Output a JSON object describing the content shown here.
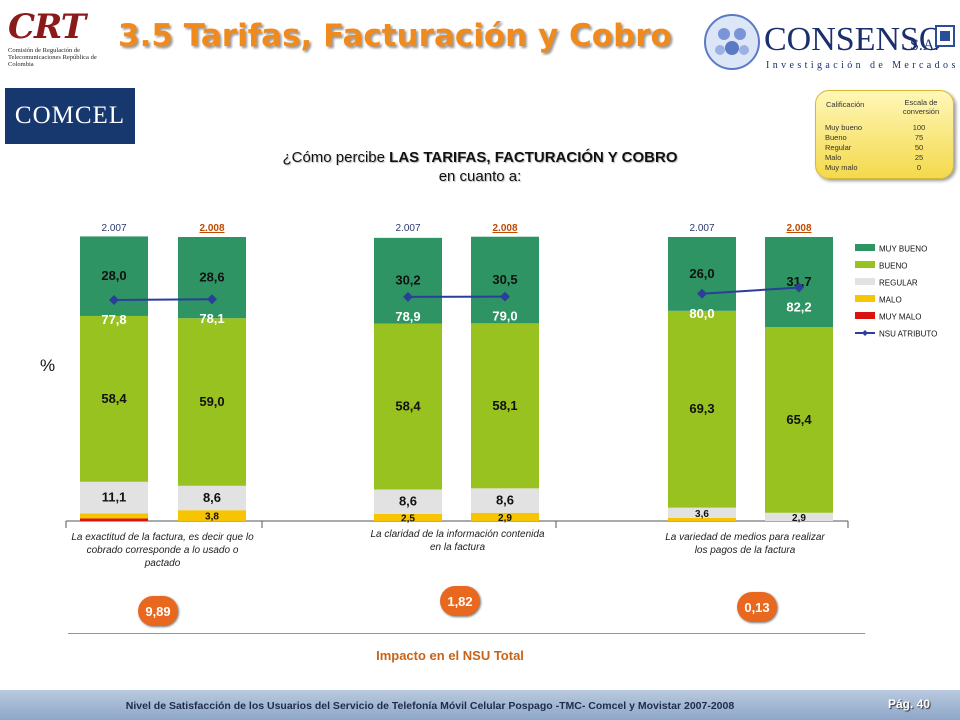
{
  "header": {
    "title": "3.5 Tarifas, Facturación y Cobro",
    "crt_logo": {
      "mark": "CRT",
      "text": "Comisión de Regulación de Telecomunicaciones República de Colombia"
    },
    "consenso_logo": {
      "name": "CONSENSO",
      "suffix": "S.A.",
      "tagline": "Investigación de Mercados"
    },
    "comcel_logo": "COMCEL"
  },
  "scale": {
    "col_rating": "Calificación",
    "col_scale": "Escala de conversión",
    "rows": [
      {
        "label": "Muy bueno",
        "value": "100"
      },
      {
        "label": "Bueno",
        "value": "75"
      },
      {
        "label": "Regular",
        "value": "50"
      },
      {
        "label": "Malo",
        "value": "25"
      },
      {
        "label": "Muy malo",
        "value": "0"
      }
    ]
  },
  "question": {
    "prefix": "¿Cómo percibe ",
    "bold": "LAS TARIFAS, FACTURACIÓN Y COBRO",
    "line2": "en cuanto a:"
  },
  "y_unit": "%",
  "impact": {
    "title": "Impacto en el NSU Total",
    "values": [
      "9,89",
      "1,82",
      "0,13"
    ]
  },
  "footer": {
    "text": "Nivel de Satisfacción de los Usuarios del Servicio de Telefonía Móvil Celular Pospago -TMC- Comcel y Movistar 2007-2008",
    "page": "Pág. 40"
  },
  "chart_data": {
    "type": "bar",
    "stacked": true,
    "ylim": [
      0,
      100
    ],
    "colors": {
      "MUY BUENO": "#2E9463",
      "BUENO": "#98C21F",
      "REGULAR": "#E2E2E2",
      "MALO": "#F6C400",
      "MUY MALO": "#D8140F",
      "NSU ATRIBUTO": "#2B3F9A"
    },
    "legend": [
      "MUY BUENO",
      "BUENO",
      "REGULAR",
      "MALO",
      "MUY MALO",
      "NSU ATRIBUTO"
    ],
    "legend_position": "right",
    "groups": [
      {
        "label": "La exactitud de la factura, es decir que lo cobrado corresponde a lo usado o pactado",
        "bars": [
          {
            "year": "2.007",
            "muy_malo": 0.9,
            "malo": 1.8,
            "regular": 11.1,
            "bueno": 58.4,
            "muy_bueno": 28.0,
            "nsu": 77.8,
            "labels": {
              "malo": "",
              "regular": "11,1",
              "bueno": "58,4",
              "muy_bueno": "28,0",
              "nsu": "77,8"
            }
          },
          {
            "year": "2.008",
            "muy_malo": 0.0,
            "malo": 3.8,
            "regular": 8.6,
            "bueno": 59.0,
            "muy_bueno": 28.6,
            "nsu": 78.1,
            "labels": {
              "malo": "3,8",
              "regular": "8,6",
              "bueno": "59,0",
              "muy_bueno": "28,6",
              "nsu": "78,1"
            }
          }
        ]
      },
      {
        "label": "La claridad de la información contenida en la factura",
        "bars": [
          {
            "year": "2.007",
            "muy_malo": 0.0,
            "malo": 2.5,
            "regular": 8.6,
            "bueno": 58.4,
            "muy_bueno": 30.2,
            "nsu": 78.9,
            "labels": {
              "malo": "2,5",
              "regular": "8,6",
              "bueno": "58,4",
              "muy_bueno": "30,2",
              "nsu": "78,9"
            }
          },
          {
            "year": "2.008",
            "muy_malo": 0.0,
            "malo": 2.9,
            "regular": 8.6,
            "bueno": 58.1,
            "muy_bueno": 30.5,
            "nsu": 79.0,
            "labels": {
              "malo": "2,9",
              "regular": "8,6",
              "bueno": "58,1",
              "muy_bueno": "30,5",
              "nsu": "79,0"
            }
          }
        ]
      },
      {
        "label": "La variedad de medios para realizar los pagos de la factura",
        "bars": [
          {
            "year": "2.007",
            "muy_malo": 0.0,
            "malo": 1.1,
            "regular": 3.6,
            "bueno": 69.3,
            "muy_bueno": 26.0,
            "nsu": 80.0,
            "labels": {
              "malo": "",
              "regular": "3,6",
              "bueno": "69,3",
              "muy_bueno": "26,0",
              "nsu": "80,0"
            }
          },
          {
            "year": "2.008",
            "muy_malo": 0.0,
            "malo": 0.0,
            "regular": 2.9,
            "bueno": 65.4,
            "muy_bueno": 31.7,
            "nsu": 82.2,
            "labels": {
              "malo": "",
              "regular": "2,9",
              "bueno": "65,4",
              "muy_bueno": "31,7",
              "nsu": "82,2"
            }
          }
        ]
      }
    ]
  }
}
